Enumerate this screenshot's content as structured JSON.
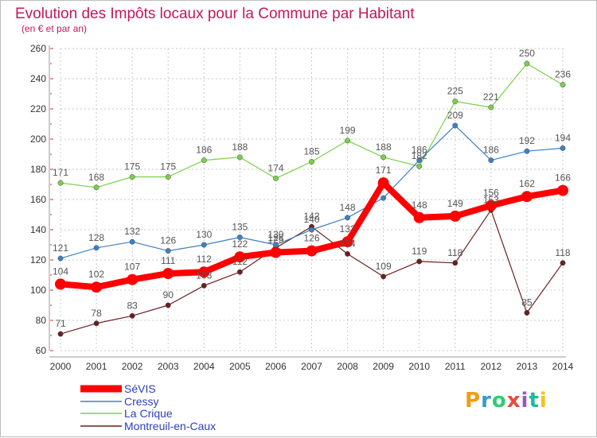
{
  "chart_data": {
    "type": "line",
    "title": "Evolution des Impôts locaux pour la Commune par Habitant",
    "subtitle": "(en € et par an)",
    "x": [
      "2000",
      "2001",
      "2002",
      "2003",
      "2004",
      "2005",
      "2006",
      "2007",
      "2008",
      "2009",
      "2010",
      "2011",
      "2012",
      "2013",
      "2014"
    ],
    "ylim": [
      60,
      260
    ],
    "yticks": [
      "60",
      "80",
      "100",
      "120",
      "140",
      "160",
      "180",
      "200",
      "220",
      "240",
      "260"
    ],
    "series": [
      {
        "name": "SéVIS",
        "color": "#ff0000",
        "values": [
          104,
          102,
          107,
          111,
          112,
          122,
          125,
          126,
          132,
          171,
          148,
          149,
          156,
          162,
          166
        ]
      },
      {
        "name": "Cressy",
        "color": "#3b82c4",
        "values": [
          121,
          128,
          132,
          126,
          130,
          135,
          130,
          140,
          148,
          161,
          186,
          209,
          186,
          192,
          194
        ]
      },
      {
        "name": "La Crique",
        "color": "#7ad04a",
        "values": [
          171,
          168,
          175,
          175,
          186,
          188,
          174,
          185,
          199,
          188,
          182,
          225,
          221,
          250,
          236
        ]
      },
      {
        "name": "Montreuil-en-Caux",
        "color": "#6b1f1f",
        "values": [
          71,
          78,
          83,
          90,
          103,
          112,
          128,
          142,
          124,
          109,
          119,
          118,
          153,
          85,
          118
        ]
      }
    ],
    "labels": [
      [
        "104",
        "102",
        "107",
        "111",
        "112",
        "122",
        "125",
        "126",
        "132",
        "171",
        "148",
        "149",
        "156",
        "162",
        "166"
      ],
      [
        "121",
        "128",
        "132",
        "126",
        "130",
        "135",
        "130",
        "140",
        "148",
        "",
        "186",
        "209",
        "186",
        "192",
        "194"
      ],
      [
        "171",
        "168",
        "175",
        "175",
        "186",
        "188",
        "174",
        "185",
        "199",
        "188",
        "182",
        "225",
        "221",
        "250",
        "236"
      ],
      [
        "71",
        "78",
        "83",
        "90",
        "103",
        "112",
        "128",
        "142",
        "124",
        "109",
        "119",
        "118",
        "153",
        "85",
        "118"
      ]
    ]
  },
  "logo": {
    "text": "Proxiti"
  }
}
